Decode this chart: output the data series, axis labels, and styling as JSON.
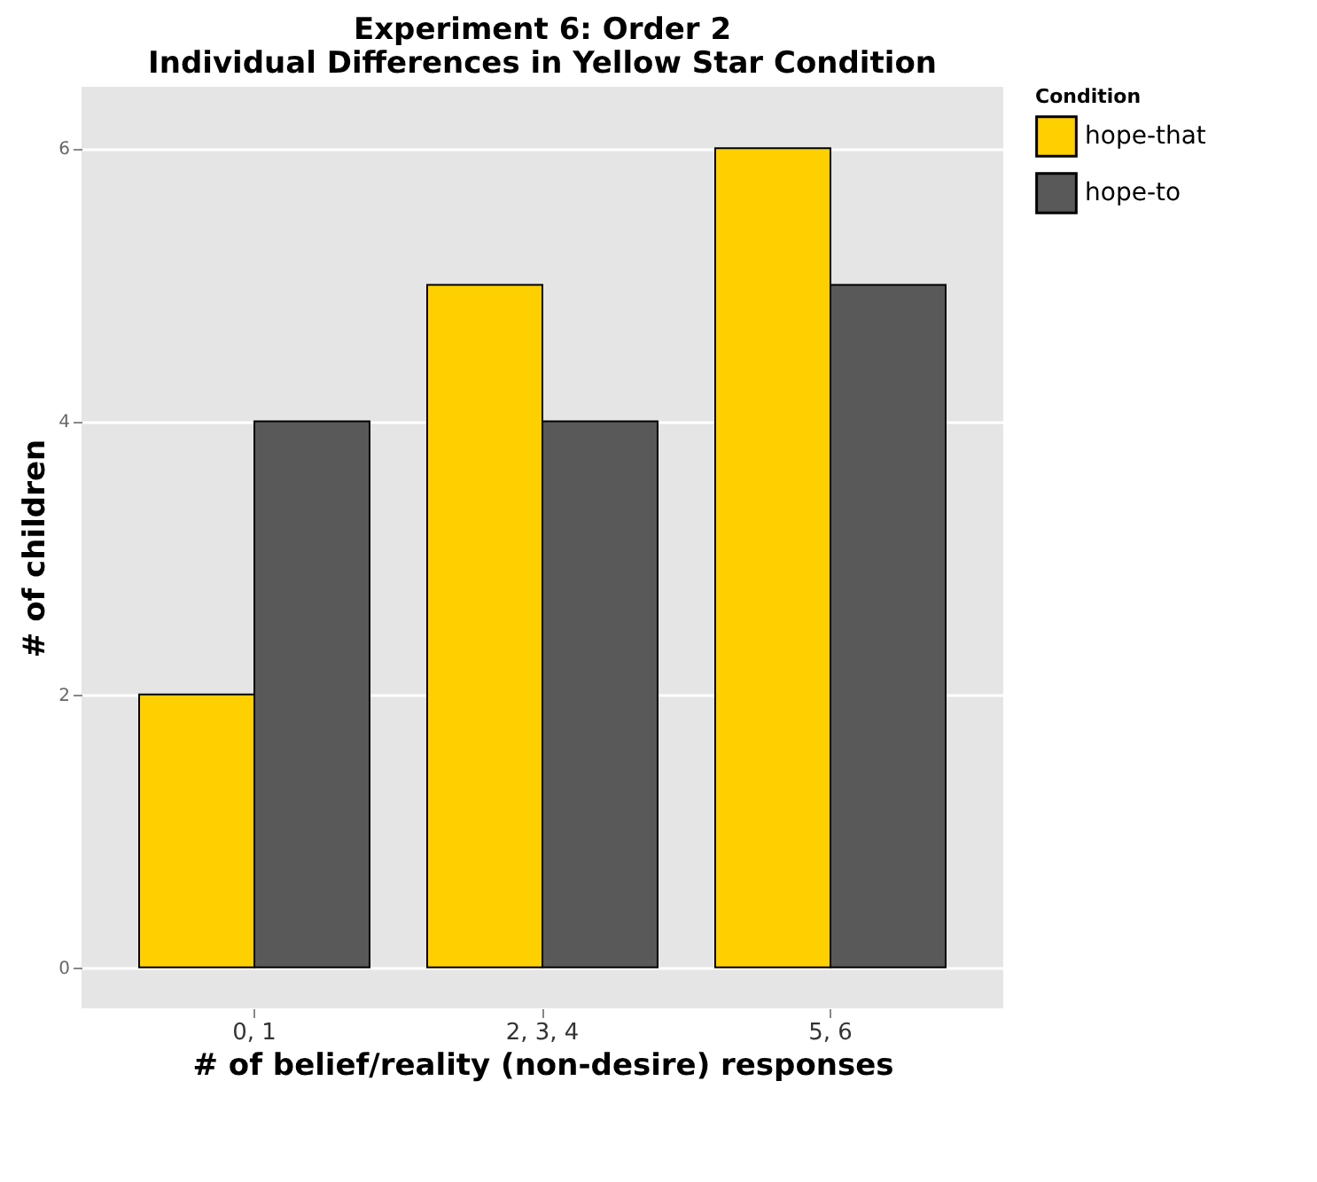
{
  "chart_data": {
    "type": "bar",
    "title": "Experiment 6: Order 2\nIndividual Differences in Yellow Star Condition",
    "xlabel": "# of belief/reality (non-desire) responses",
    "ylabel": "# of children",
    "legend_title": "Condition",
    "categories": [
      "0, 1",
      "2, 3, 4",
      "5, 6"
    ],
    "series": [
      {
        "name": "hope-that",
        "color": "#ffd000",
        "values": [
          2,
          5,
          6
        ]
      },
      {
        "name": "hope-to",
        "color": "#595959",
        "values": [
          4,
          4,
          5
        ]
      }
    ],
    "ylim": [
      -0.3,
      6.45
    ],
    "yticks": [
      0,
      2,
      4,
      6
    ],
    "grid": true,
    "legend": "right"
  }
}
